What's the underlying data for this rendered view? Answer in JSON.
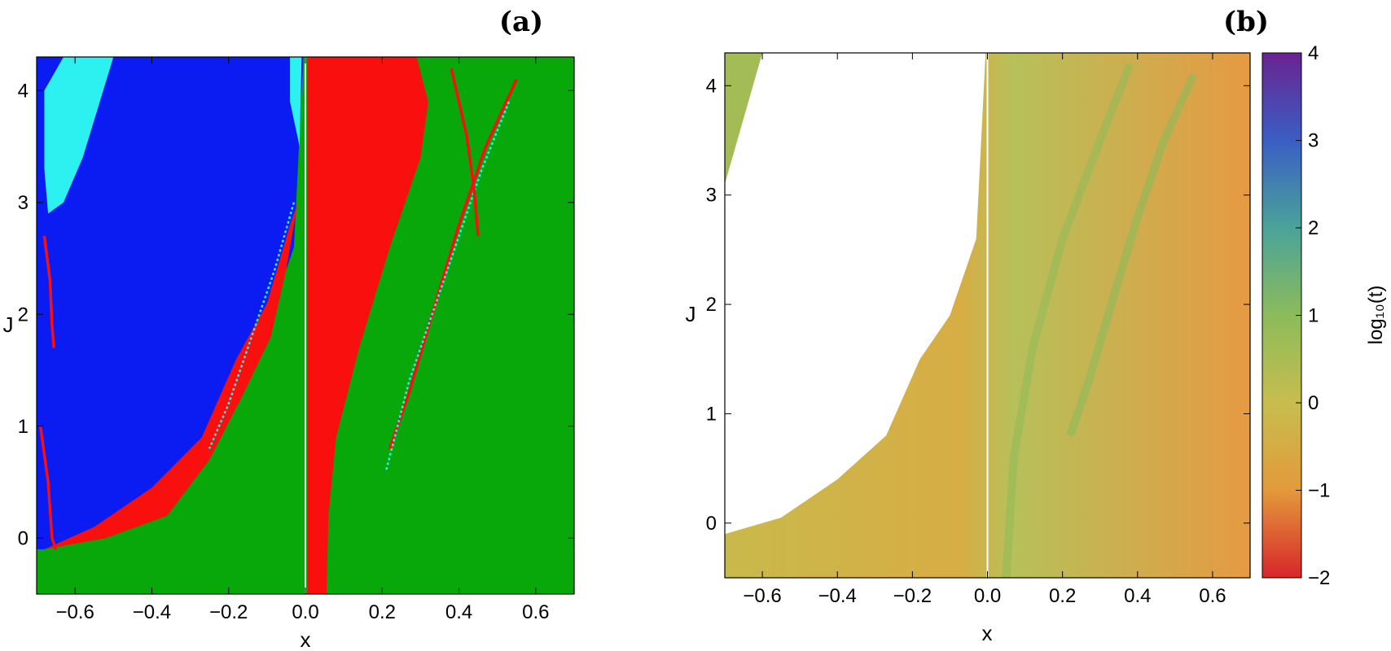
{
  "chart_data": [
    {
      "type": "heatmap",
      "panel": "(a)",
      "xlabel": "x",
      "ylabel": "J",
      "xlim": [
        -0.7,
        0.7
      ],
      "ylim": [
        -0.5,
        4.3
      ],
      "x_ticks": [
        -0.6,
        -0.4,
        -0.2,
        0.0,
        0.2,
        0.4,
        0.6
      ],
      "x_tick_labels": [
        "−0.6",
        "−0.4",
        "−0.2",
        "0.0",
        "0.2",
        "0.4",
        "0.6"
      ],
      "y_ticks": [
        0,
        1,
        2,
        3,
        4
      ],
      "y_tick_labels": [
        "0",
        "1",
        "2",
        "3",
        "4"
      ],
      "colors": {
        "green": "#08a80a",
        "blue": "#0b1cf2",
        "red": "#fa0f0f",
        "cyan": "#2df0f0",
        "white": "#ffffff"
      },
      "regions": [
        {
          "color": "green",
          "description_points": [
            [
              -0.7,
              -0.5
            ],
            [
              0.7,
              -0.5
            ],
            [
              0.7,
              4.3
            ],
            [
              -0.7,
              4.3
            ]
          ]
        },
        {
          "color": "blue",
          "description_points": [
            [
              -0.7,
              4.3
            ],
            [
              -0.005,
              4.3
            ],
            [
              -0.03,
              2.6
            ],
            [
              -0.1,
              1.9
            ],
            [
              -0.18,
              1.5
            ],
            [
              -0.27,
              0.8
            ],
            [
              -0.4,
              0.4
            ],
            [
              -0.55,
              0.05
            ],
            [
              -0.68,
              -0.1
            ],
            [
              -0.7,
              -0.1
            ]
          ]
        },
        {
          "color": "cyan",
          "description_points": [
            [
              -0.63,
              4.3
            ],
            [
              -0.5,
              4.3
            ],
            [
              -0.58,
              3.4
            ],
            [
              -0.63,
              3.0
            ],
            [
              -0.67,
              2.9
            ],
            [
              -0.68,
              3.3
            ],
            [
              -0.68,
              4.0
            ]
          ]
        },
        {
          "color": "cyan",
          "description_points": [
            [
              -0.04,
              4.3
            ],
            [
              -0.01,
              4.3
            ],
            [
              -0.015,
              3.5
            ],
            [
              -0.04,
              3.9
            ]
          ]
        },
        {
          "color": "red",
          "description_points": [
            [
              0.005,
              4.3
            ],
            [
              0.29,
              4.3
            ],
            [
              0.32,
              3.9
            ],
            [
              0.3,
              3.4
            ],
            [
              0.22,
              2.6
            ],
            [
              0.14,
              1.7
            ],
            [
              0.08,
              0.9
            ],
            [
              0.06,
              0.2
            ],
            [
              0.055,
              -0.5
            ],
            [
              0.005,
              -0.5
            ]
          ]
        },
        {
          "color": "red",
          "description_points": [
            [
              -0.68,
              -0.1
            ],
            [
              -0.52,
              0.0
            ],
            [
              -0.36,
              0.2
            ],
            [
              -0.25,
              0.7
            ],
            [
              -0.16,
              1.3
            ],
            [
              -0.09,
              1.8
            ],
            [
              -0.05,
              2.4
            ],
            [
              -0.02,
              3.0
            ],
            [
              -0.04,
              2.8
            ],
            [
              -0.1,
              2.1
            ],
            [
              -0.18,
              1.6
            ],
            [
              -0.27,
              0.9
            ],
            [
              -0.4,
              0.45
            ],
            [
              -0.55,
              0.1
            ]
          ]
        },
        {
          "color": "white",
          "description_points": [
            [
              -0.002,
              -0.5
            ],
            [
              0.002,
              -0.5
            ],
            [
              0.002,
              4.3
            ],
            [
              -0.002,
              4.3
            ]
          ]
        }
      ],
      "curves": [
        {
          "color": "red",
          "points": [
            [
              0.55,
              4.1
            ],
            [
              0.47,
              3.5
            ],
            [
              0.4,
              2.8
            ],
            [
              0.33,
              2.0
            ],
            [
              0.27,
              1.3
            ],
            [
              0.22,
              0.8
            ]
          ]
        },
        {
          "color": "cyan",
          "points": [
            [
              0.53,
              3.9
            ],
            [
              0.46,
              3.3
            ],
            [
              0.39,
              2.6
            ],
            [
              0.33,
              2.0
            ],
            [
              0.27,
              1.4
            ],
            [
              0.21,
              0.6
            ]
          ]
        },
        {
          "color": "cyan",
          "points": [
            [
              -0.03,
              3.0
            ],
            [
              -0.08,
              2.4
            ],
            [
              -0.14,
              1.8
            ],
            [
              -0.2,
              1.2
            ],
            [
              -0.25,
              0.8
            ]
          ]
        },
        {
          "color": "red",
          "points": [
            [
              0.38,
              4.2
            ],
            [
              0.42,
              3.6
            ],
            [
              0.44,
              3.1
            ],
            [
              0.45,
              2.7
            ]
          ]
        },
        {
          "color": "red",
          "points": [
            [
              -0.68,
              2.7
            ],
            [
              -0.665,
              2.3
            ],
            [
              -0.66,
              1.9
            ],
            [
              -0.655,
              1.7
            ]
          ]
        },
        {
          "color": "red",
          "points": [
            [
              -0.69,
              1.0
            ],
            [
              -0.67,
              0.5
            ],
            [
              -0.66,
              0.0
            ],
            [
              -0.65,
              -0.1
            ]
          ]
        }
      ]
    },
    {
      "type": "heatmap",
      "panel": "(b)",
      "xlabel": "x",
      "ylabel": "J",
      "xlim": [
        -0.7,
        0.7
      ],
      "ylim": [
        -0.5,
        4.3
      ],
      "x_ticks": [
        -0.6,
        -0.4,
        -0.2,
        0.0,
        0.2,
        0.4,
        0.6
      ],
      "x_tick_labels": [
        "−0.6",
        "−0.4",
        "−0.2",
        "0.0",
        "0.2",
        "0.4",
        "0.6"
      ],
      "y_ticks": [
        0,
        1,
        2,
        3,
        4
      ],
      "y_tick_labels": [
        "0",
        "1",
        "2",
        "3",
        "4"
      ],
      "colorbar": {
        "label": "log₁₀(t)",
        "range": [
          -2,
          4
        ],
        "ticks": [
          -2,
          -1,
          0,
          1,
          2,
          3,
          4
        ],
        "tick_labels": [
          "−2",
          "−1",
          "0",
          "1",
          "2",
          "3",
          "4"
        ],
        "stops": [
          {
            "value": -2,
            "color": "#d7262a"
          },
          {
            "value": -1,
            "color": "#e39a3b"
          },
          {
            "value": 0,
            "color": "#c7bd4e"
          },
          {
            "value": 1,
            "color": "#8cbb5a"
          },
          {
            "value": 2,
            "color": "#4aa39a"
          },
          {
            "value": 3,
            "color": "#3a5ec4"
          },
          {
            "value": 4,
            "color": "#6a2390"
          }
        ]
      },
      "regions": [
        {
          "log10_t": -0.3,
          "description_points": [
            [
              -0.7,
              -0.5
            ],
            [
              0.7,
              -0.5
            ],
            [
              0.7,
              4.3
            ],
            [
              -0.005,
              4.3
            ],
            [
              -0.03,
              2.6
            ],
            [
              -0.1,
              1.9
            ],
            [
              -0.18,
              1.5
            ],
            [
              -0.27,
              0.8
            ],
            [
              -0.4,
              0.4
            ],
            [
              -0.55,
              0.05
            ],
            [
              -0.7,
              -0.1
            ]
          ]
        },
        {
          "log10_t": 0.6,
          "description_points": [
            [
              -0.7,
              3.1
            ],
            [
              -0.6,
              4.3
            ],
            [
              -0.7,
              4.3
            ]
          ]
        }
      ],
      "curves": [
        {
          "log10_t": 1.0,
          "points": [
            [
              0.55,
              4.1
            ],
            [
              0.47,
              3.5
            ],
            [
              0.4,
              2.8
            ],
            [
              0.33,
              2.0
            ],
            [
              0.27,
              1.3
            ],
            [
              0.22,
              0.8
            ]
          ]
        },
        {
          "log10_t": 0.9,
          "points": [
            [
              0.38,
              4.2
            ],
            [
              0.3,
              3.5
            ],
            [
              0.2,
              2.6
            ],
            [
              0.12,
              1.6
            ],
            [
              0.07,
              0.6
            ],
            [
              0.05,
              -0.5
            ]
          ]
        }
      ]
    }
  ]
}
